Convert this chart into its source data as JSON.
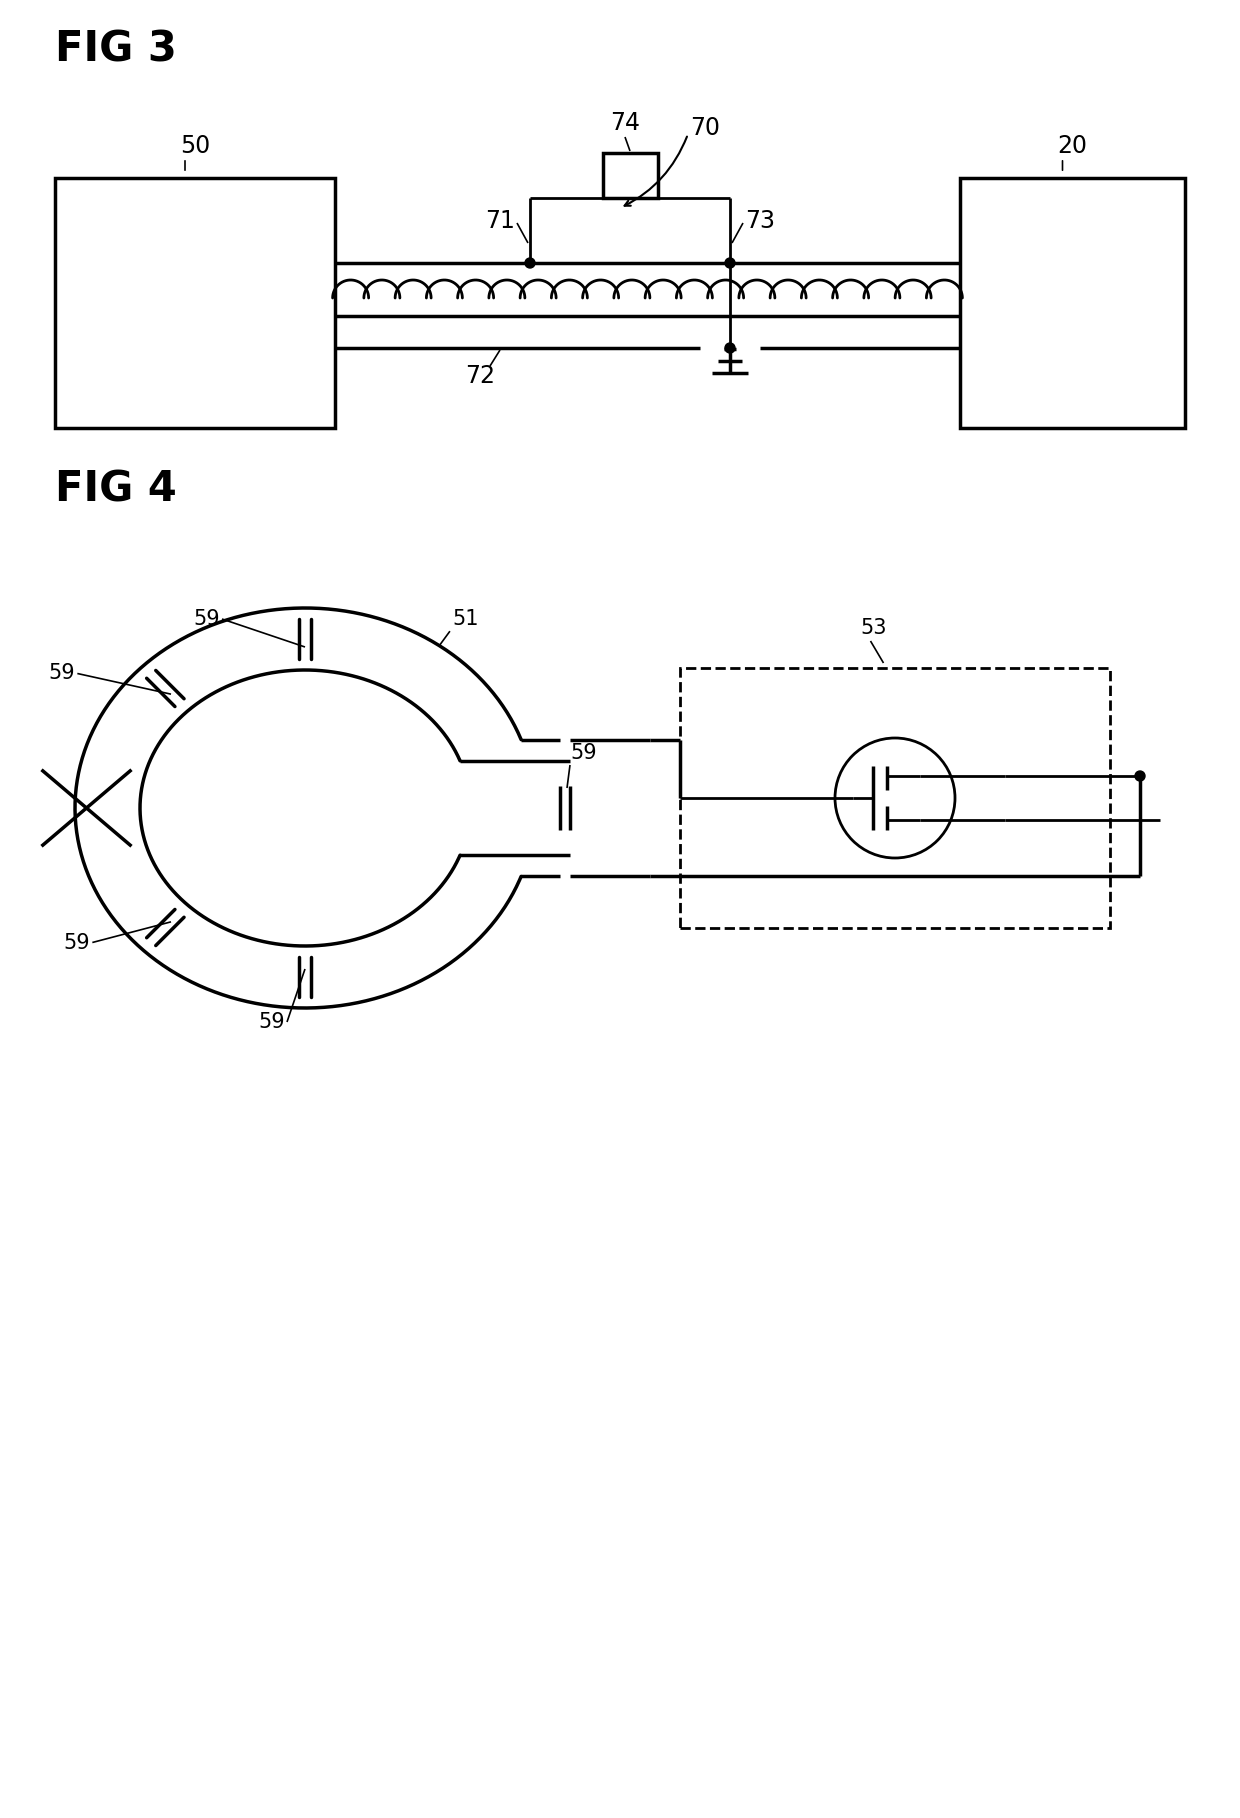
{
  "fig3_label": "FIG 3",
  "fig4_label": "FIG 4",
  "bg_color": "#ffffff",
  "line_color": "#000000",
  "label_50": "50",
  "label_20": "20",
  "label_70": "70",
  "label_71": "71",
  "label_72": "72",
  "label_73": "73",
  "label_74": "74",
  "label_51": "51",
  "label_53": "53",
  "label_59": "59",
  "fontsize_title": 30,
  "fontsize_label": 17
}
